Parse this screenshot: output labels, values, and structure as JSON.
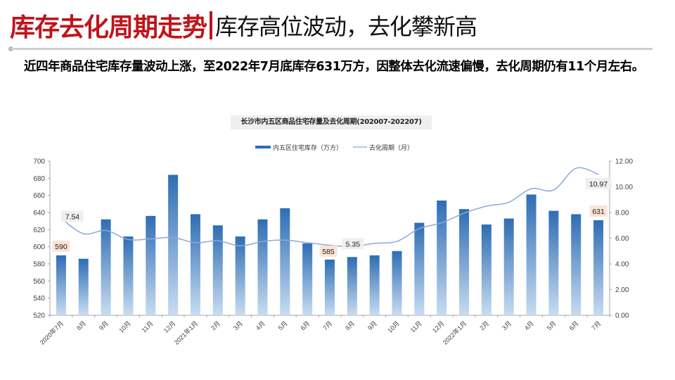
{
  "header": {
    "title_main": "库存去化周期走势",
    "title_sub": "库存高位波动，去化攀新高"
  },
  "summary_text": "近四年商品住宅库存量波动上涨，至2022年7月底库存631万方，因整体去化流速偏慢，去化周期仍有11个月左右。",
  "colors": {
    "title_red": "#c0141b",
    "bar_top": "#2e6db4",
    "bar_bottom": "#c8dcf1",
    "line": "#8ea8dc",
    "bar_label_bg": "#fbe3d6",
    "line_label_bg": "#efefef"
  },
  "chart_data": {
    "type": "bar+line",
    "title": "长沙市内五区商品住宅存量及去化周期(202007-202207)",
    "legend": [
      "内五区住宅库存（万方）",
      "去化周期（月）"
    ],
    "legend_position": "top",
    "categories": [
      "2020年7月",
      "8月",
      "9月",
      "10月",
      "11月",
      "12月",
      "2021年1月",
      "2月",
      "3月",
      "4月",
      "5月",
      "6月",
      "7月",
      "8月",
      "9月",
      "10月",
      "11月",
      "12月",
      "2022年1月",
      "2月",
      "3月",
      "4月",
      "5月",
      "6月",
      "7月"
    ],
    "series": [
      {
        "name": "内五区住宅库存（万方）",
        "type": "bar",
        "axis": "left",
        "values": [
          590,
          586,
          632,
          612,
          636,
          684,
          638,
          625,
          612,
          632,
          645,
          604,
          585,
          588,
          590,
          595,
          628,
          654,
          644,
          626,
          633,
          661,
          642,
          638,
          631
        ]
      },
      {
        "name": "去化周期（月）",
        "type": "line",
        "axis": "right",
        "values": [
          7.54,
          6.35,
          6.6,
          5.9,
          5.95,
          6.05,
          5.65,
          5.8,
          5.4,
          5.75,
          5.85,
          5.65,
          5.45,
          5.35,
          5.6,
          5.75,
          6.75,
          7.2,
          7.95,
          8.5,
          8.8,
          9.85,
          9.75,
          11.45,
          10.97
        ]
      }
    ],
    "data_labels": [
      {
        "series": 0,
        "index": 0,
        "text": "590"
      },
      {
        "series": 1,
        "index": 0,
        "text": "7.54"
      },
      {
        "series": 0,
        "index": 12,
        "text": "585"
      },
      {
        "series": 1,
        "index": 13,
        "text": "5.35"
      },
      {
        "series": 1,
        "index": 24,
        "text": "10.97"
      },
      {
        "series": 0,
        "index": 24,
        "text": "631"
      }
    ],
    "y_left": {
      "min": 520,
      "max": 700,
      "ticks": [
        "520",
        "540",
        "560",
        "580",
        "600",
        "620",
        "640",
        "660",
        "680",
        "700"
      ]
    },
    "y_right": {
      "min": 0,
      "max": 12,
      "ticks": [
        "0.00",
        "2.00",
        "4.00",
        "6.00",
        "8.00",
        "10.00",
        "12.00"
      ]
    },
    "grid": false
  }
}
